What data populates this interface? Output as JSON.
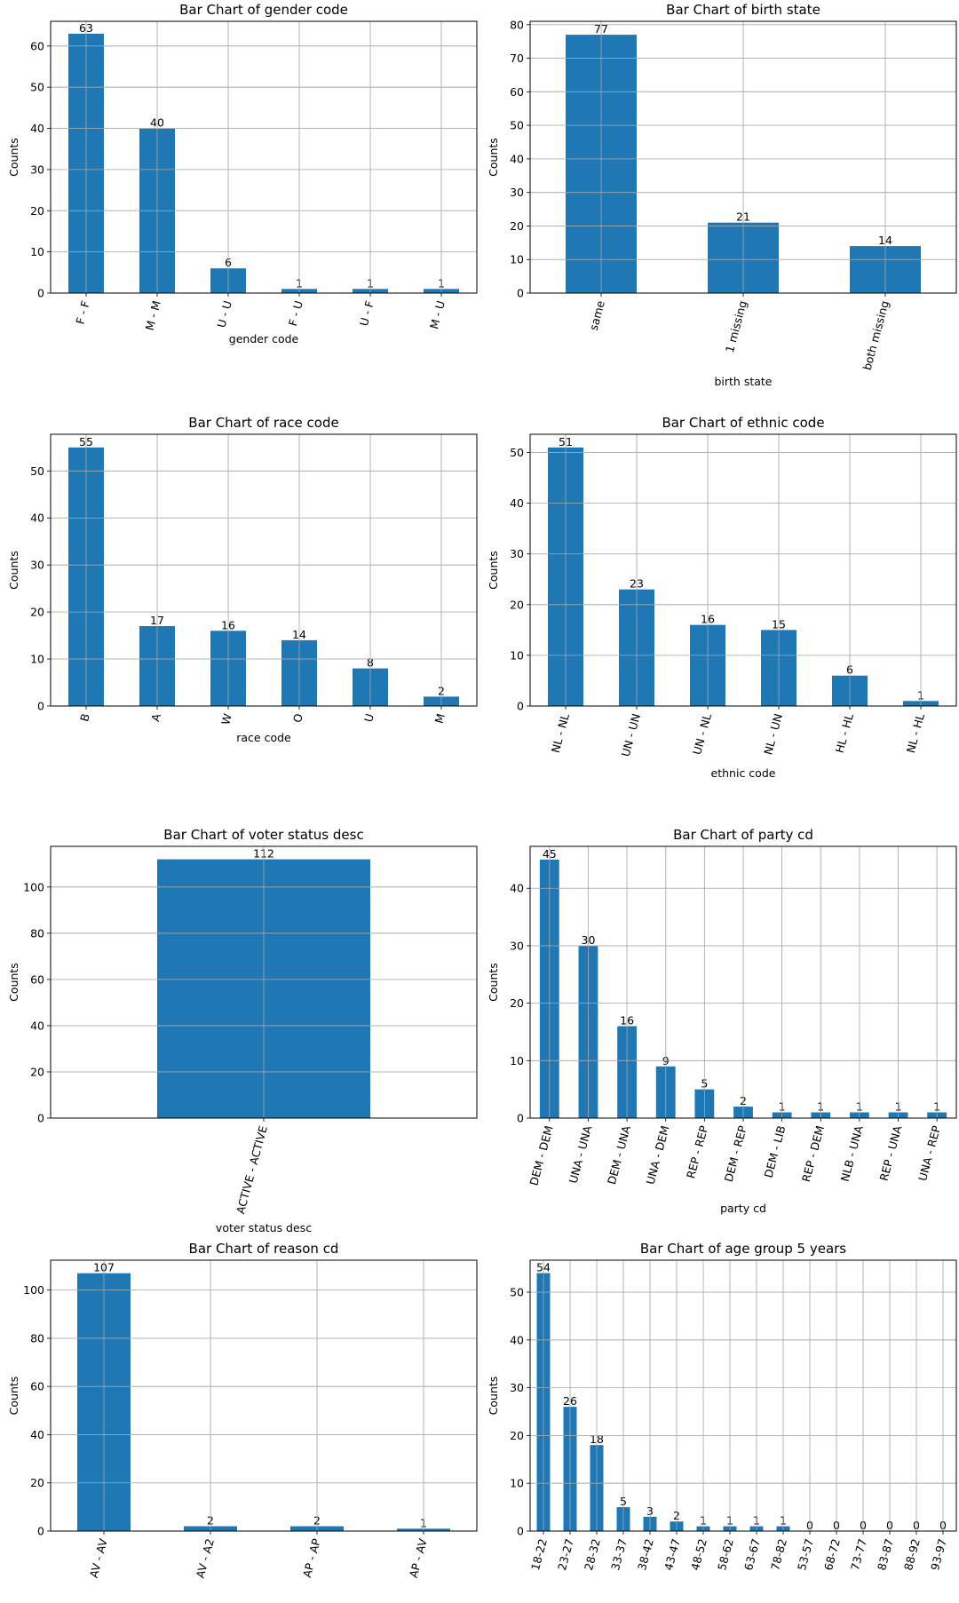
{
  "chart_data": [
    {
      "type": "bar",
      "title": "Bar Chart of gender code",
      "xlabel": "gender code",
      "ylabel": "Counts",
      "categories": [
        "F - F",
        "M - M",
        "U - U",
        "F - U",
        "U - F",
        "M - U"
      ],
      "values": [
        63,
        40,
        6,
        1,
        1,
        1
      ],
      "ylim": [
        0,
        66
      ],
      "yticks": [
        0,
        10,
        20,
        30,
        40,
        50,
        60
      ],
      "grid": true,
      "color": "#1f77b4"
    },
    {
      "type": "bar",
      "title": "Bar Chart of birth state",
      "xlabel": "birth state",
      "ylabel": "Counts",
      "categories": [
        "same",
        "1 missing",
        "both missing"
      ],
      "values": [
        77,
        21,
        14
      ],
      "ylim": [
        0,
        81
      ],
      "yticks": [
        0,
        10,
        20,
        30,
        40,
        50,
        60,
        70,
        80
      ],
      "grid": true,
      "color": "#1f77b4"
    },
    {
      "type": "bar",
      "title": "Bar Chart of race code",
      "xlabel": "race code",
      "ylabel": "Counts",
      "categories": [
        "B",
        "A",
        "W",
        "O",
        "U",
        "M"
      ],
      "values": [
        55,
        17,
        16,
        14,
        8,
        2
      ],
      "ylim": [
        0,
        57.8
      ],
      "yticks": [
        0,
        10,
        20,
        30,
        40,
        50
      ],
      "grid": true,
      "color": "#1f77b4"
    },
    {
      "type": "bar",
      "title": "Bar Chart of ethnic code",
      "xlabel": "ethnic code",
      "ylabel": "Counts",
      "categories": [
        "NL - NL",
        "UN - UN",
        "UN - NL",
        "NL - UN",
        "HL - HL",
        "NL - HL"
      ],
      "values": [
        51,
        23,
        16,
        15,
        6,
        1
      ],
      "ylim": [
        0,
        53.6
      ],
      "yticks": [
        0,
        10,
        20,
        30,
        40,
        50
      ],
      "grid": true,
      "color": "#1f77b4"
    },
    {
      "type": "bar",
      "title": "Bar Chart of voter status desc",
      "xlabel": "voter status desc",
      "ylabel": "Counts",
      "categories": [
        "ACTIVE - ACTIVE"
      ],
      "values": [
        112
      ],
      "ylim": [
        0,
        117.6
      ],
      "yticks": [
        0,
        20,
        40,
        60,
        80,
        100
      ],
      "grid": true,
      "color": "#1f77b4"
    },
    {
      "type": "bar",
      "title": "Bar Chart of party cd",
      "xlabel": "party cd",
      "ylabel": "Counts",
      "categories": [
        "DEM - DEM",
        "UNA - UNA",
        "DEM - UNA",
        "UNA - DEM",
        "REP - REP",
        "DEM - REP",
        "DEM - LIB",
        "REP - DEM",
        "NLB - UNA",
        "REP - UNA",
        "UNA - REP"
      ],
      "values": [
        45,
        30,
        16,
        9,
        5,
        2,
        1,
        1,
        1,
        1,
        1
      ],
      "ylim": [
        0,
        47.3
      ],
      "yticks": [
        0,
        10,
        20,
        30,
        40
      ],
      "grid": true,
      "color": "#1f77b4"
    },
    {
      "type": "bar",
      "title": "Bar Chart of reason cd",
      "xlabel": "reason cd",
      "ylabel": "Counts",
      "categories": [
        "AV - AV",
        "AV - A2",
        "AP - AP",
        "AP - AV"
      ],
      "values": [
        107,
        2,
        2,
        1
      ],
      "ylim": [
        0,
        112.4
      ],
      "yticks": [
        0,
        20,
        40,
        60,
        80,
        100
      ],
      "grid": true,
      "color": "#1f77b4"
    },
    {
      "type": "bar",
      "title": "Bar Chart of age group 5 years",
      "xlabel": "age group 5 years",
      "ylabel": "Counts",
      "categories": [
        "18-22",
        "23-27",
        "28-32",
        "33-37",
        "38-42",
        "43-47",
        "48-52",
        "58-62",
        "63-67",
        "78-82",
        "53-57",
        "68-72",
        "73-77",
        "83-87",
        "88-92",
        "93-97"
      ],
      "values": [
        54,
        26,
        18,
        5,
        3,
        2,
        1,
        1,
        1,
        1,
        0,
        0,
        0,
        0,
        0,
        0
      ],
      "ylim": [
        0,
        56.7
      ],
      "yticks": [
        0,
        10,
        20,
        30,
        40,
        50
      ],
      "grid": true,
      "color": "#1f77b4"
    }
  ]
}
